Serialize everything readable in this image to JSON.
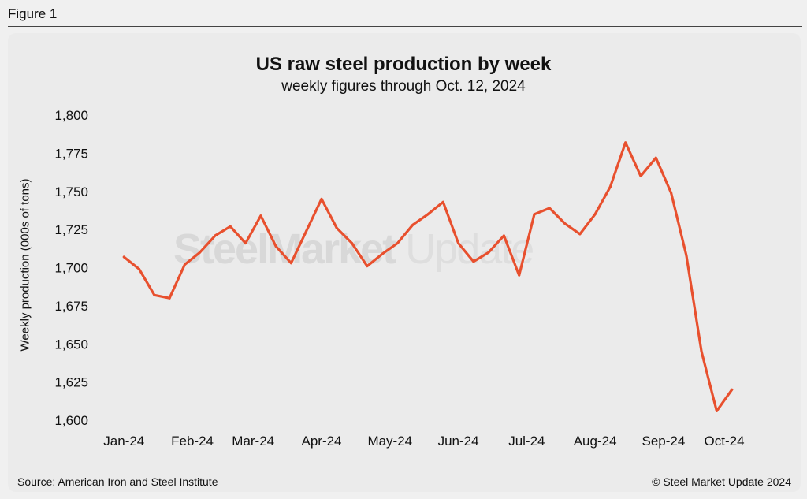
{
  "figure_label": "Figure 1",
  "footer": {
    "source": "Source: American Iron and Steel Institute",
    "copyright": "© Steel Market Update 2024"
  },
  "watermark": {
    "strong": "SteelMarket",
    "light": " Update"
  },
  "colors": {
    "line": "#e8502e",
    "background": "#f0f0f0",
    "panel": "#ebebeb"
  },
  "chart_data": {
    "type": "line",
    "title": "US raw steel production by week",
    "subtitle": "weekly figures through Oct. 12, 2024",
    "xlabel": "",
    "ylabel": "Weekly production (000s of tons)",
    "ylim": [
      1600,
      1800
    ],
    "yticks": [
      1600,
      1625,
      1650,
      1675,
      1700,
      1725,
      1750,
      1775,
      1800
    ],
    "ytick_labels": [
      "1,600",
      "1,625",
      "1,650",
      "1,675",
      "1,700",
      "1,725",
      "1,750",
      "1,775",
      "1,800"
    ],
    "xticks": [
      {
        "label": "Jan-24",
        "index": 0
      },
      {
        "label": "Feb-24",
        "index": 4.5
      },
      {
        "label": "Mar-24",
        "index": 8.5
      },
      {
        "label": "Apr-24",
        "index": 13
      },
      {
        "label": "May-24",
        "index": 17.5
      },
      {
        "label": "Jun-24",
        "index": 22
      },
      {
        "label": "Jul-24",
        "index": 26.5
      },
      {
        "label": "Aug-24",
        "index": 31
      },
      {
        "label": "Sep-24",
        "index": 35.5
      },
      {
        "label": "Oct-24",
        "index": 39.5
      }
    ],
    "x_range": [
      -1,
      41
    ],
    "grid": false,
    "series": [
      {
        "name": "Weekly production",
        "values": [
          1707,
          1699,
          1682,
          1680,
          1702,
          1710,
          1721,
          1727,
          1716,
          1734,
          1714,
          1703,
          1724,
          1745,
          1726,
          1716,
          1701,
          1709,
          1716,
          1728,
          1735,
          1743,
          1716,
          1704,
          1710,
          1721,
          1695,
          1735,
          1739,
          1729,
          1722,
          1735,
          1753,
          1782,
          1760,
          1772,
          1749,
          1708,
          1645,
          1606,
          1620
        ]
      }
    ]
  }
}
